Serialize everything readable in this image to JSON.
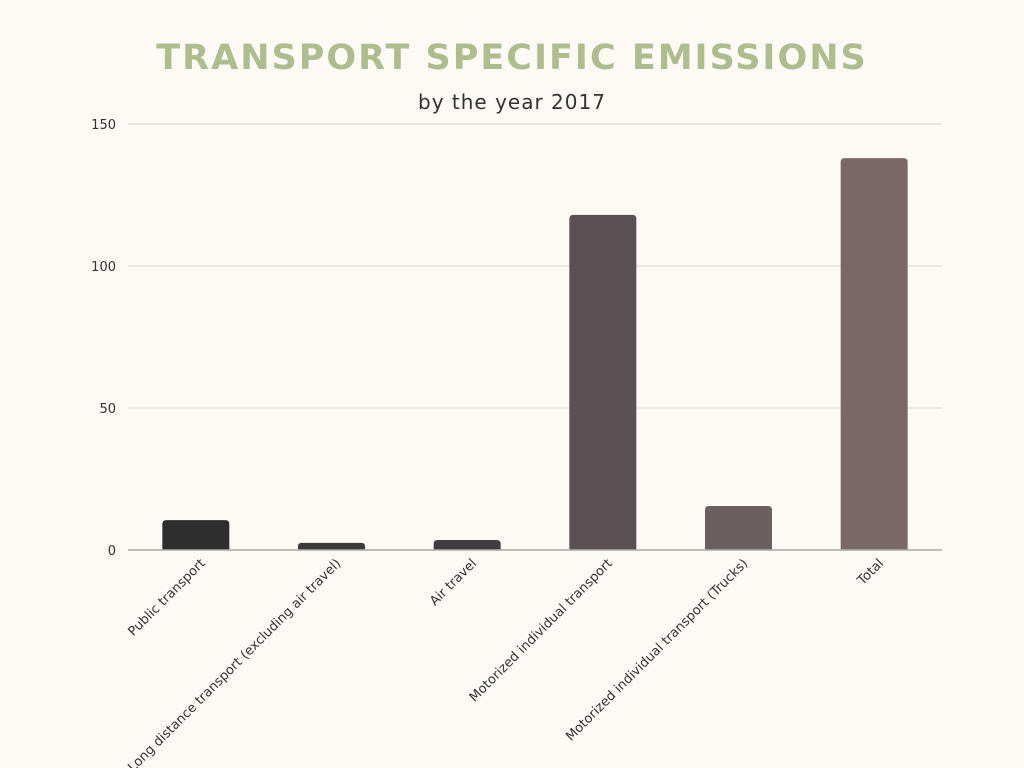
{
  "chart_data": {
    "type": "bar",
    "title": "TRANSPORT SPECIFIC EMISSIONS",
    "subtitle": "by the year 2017",
    "xlabel": "",
    "ylabel": "",
    "categories": [
      "Public transport",
      "Long distance transport (excluding air travel)",
      "Air travel",
      "Motorized individual transport",
      "Motorized individual transport (Trucks)",
      "Total"
    ],
    "values": [
      10.5,
      2.5,
      3.5,
      118,
      15.5,
      138
    ],
    "ylim": [
      0,
      150
    ],
    "yticks": [
      0,
      50,
      100,
      150
    ],
    "grid": true,
    "legend": "none",
    "bar_colors": [
      "#2e2e2e",
      "#3b3a3b",
      "#3f3d3f",
      "#5b5054",
      "#6c5f60",
      "#7a6868"
    ],
    "gridline_color": "#d9d6d1",
    "axis_color": "#aaaaaa"
  }
}
